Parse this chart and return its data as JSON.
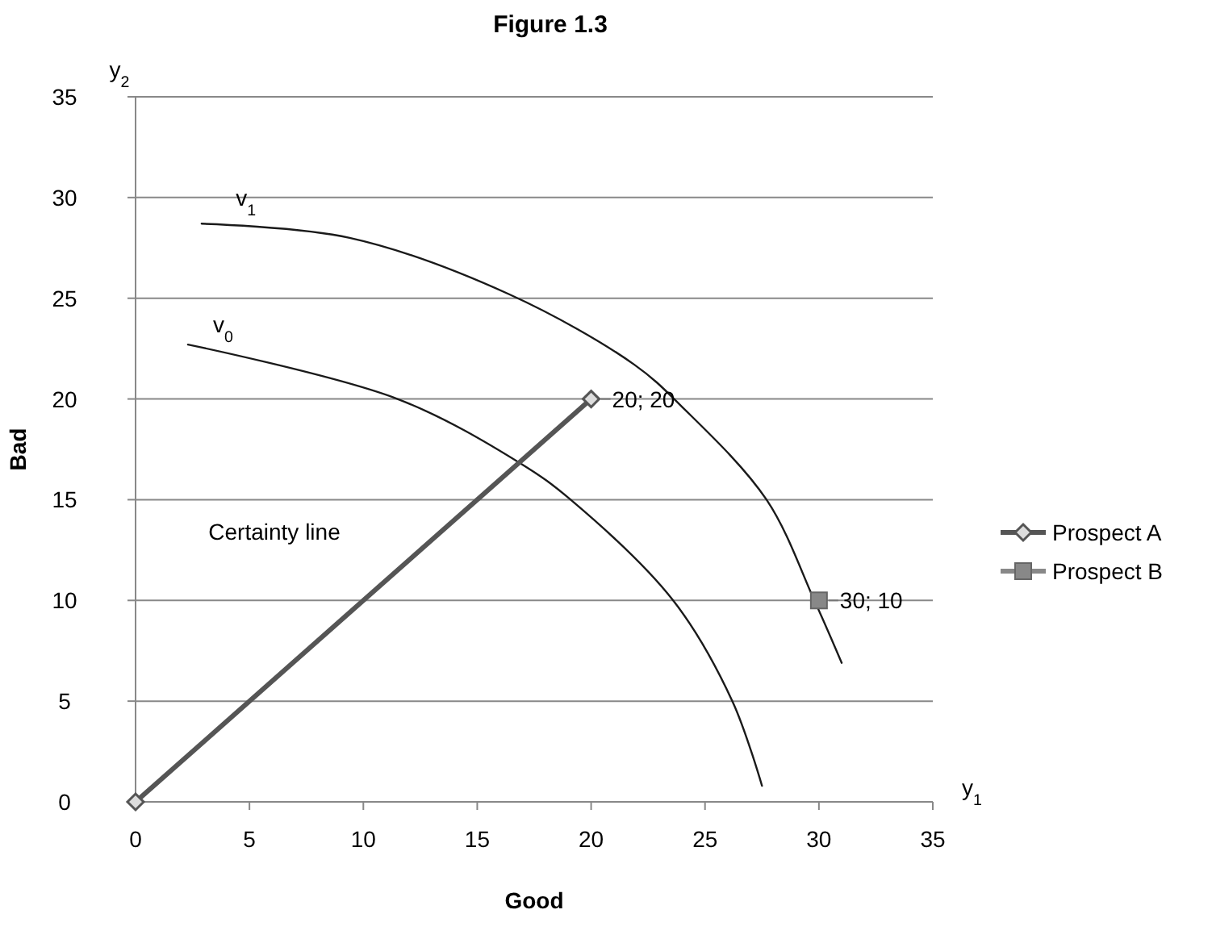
{
  "chart_data": {
    "type": "line",
    "title": "Figure 1.3",
    "xlabel": "Good",
    "ylabel": "Bad",
    "xlim": [
      0,
      35
    ],
    "ylim": [
      0,
      35
    ],
    "xticks": [
      0,
      5,
      10,
      15,
      20,
      25,
      30,
      35
    ],
    "yticks": [
      0,
      5,
      10,
      15,
      20,
      25,
      30,
      35
    ],
    "grid": "y",
    "legend": "right",
    "series": [
      {
        "color": "#1a1a1a",
        "marker": "none",
        "x": [
          2.3,
          11.5,
          16.9,
          19.1,
          23.6,
          26.2,
          27.5
        ],
        "values": [
          22.7,
          20.0,
          16.8,
          15.0,
          10.0,
          5.0,
          0.8
        ]
      },
      {
        "color": "#1a1a1a",
        "marker": "none",
        "x": [
          2.9,
          9.4,
          16.4,
          21.9,
          24.0,
          27.7,
          29.8,
          31.0
        ],
        "values": [
          28.7,
          28.0,
          25.2,
          21.7,
          19.6,
          15.0,
          10.0,
          6.9
        ]
      },
      {
        "name": "Prospect A",
        "color": "#555555",
        "marker": "diamond",
        "x": [
          0,
          20
        ],
        "values": [
          0,
          20
        ],
        "value_labels": [
          null,
          "20; 20"
        ]
      },
      {
        "name": "Prospect B",
        "color": "#888888",
        "marker": "square",
        "x": [
          30
        ],
        "values": [
          10
        ],
        "value_labels": [
          "30; 10"
        ]
      }
    ],
    "annotations": [
      "v$_{0}$",
      "v$_{1}$",
      "Certainty line",
      "y$_{2}$",
      "y$_{1}$"
    ]
  }
}
